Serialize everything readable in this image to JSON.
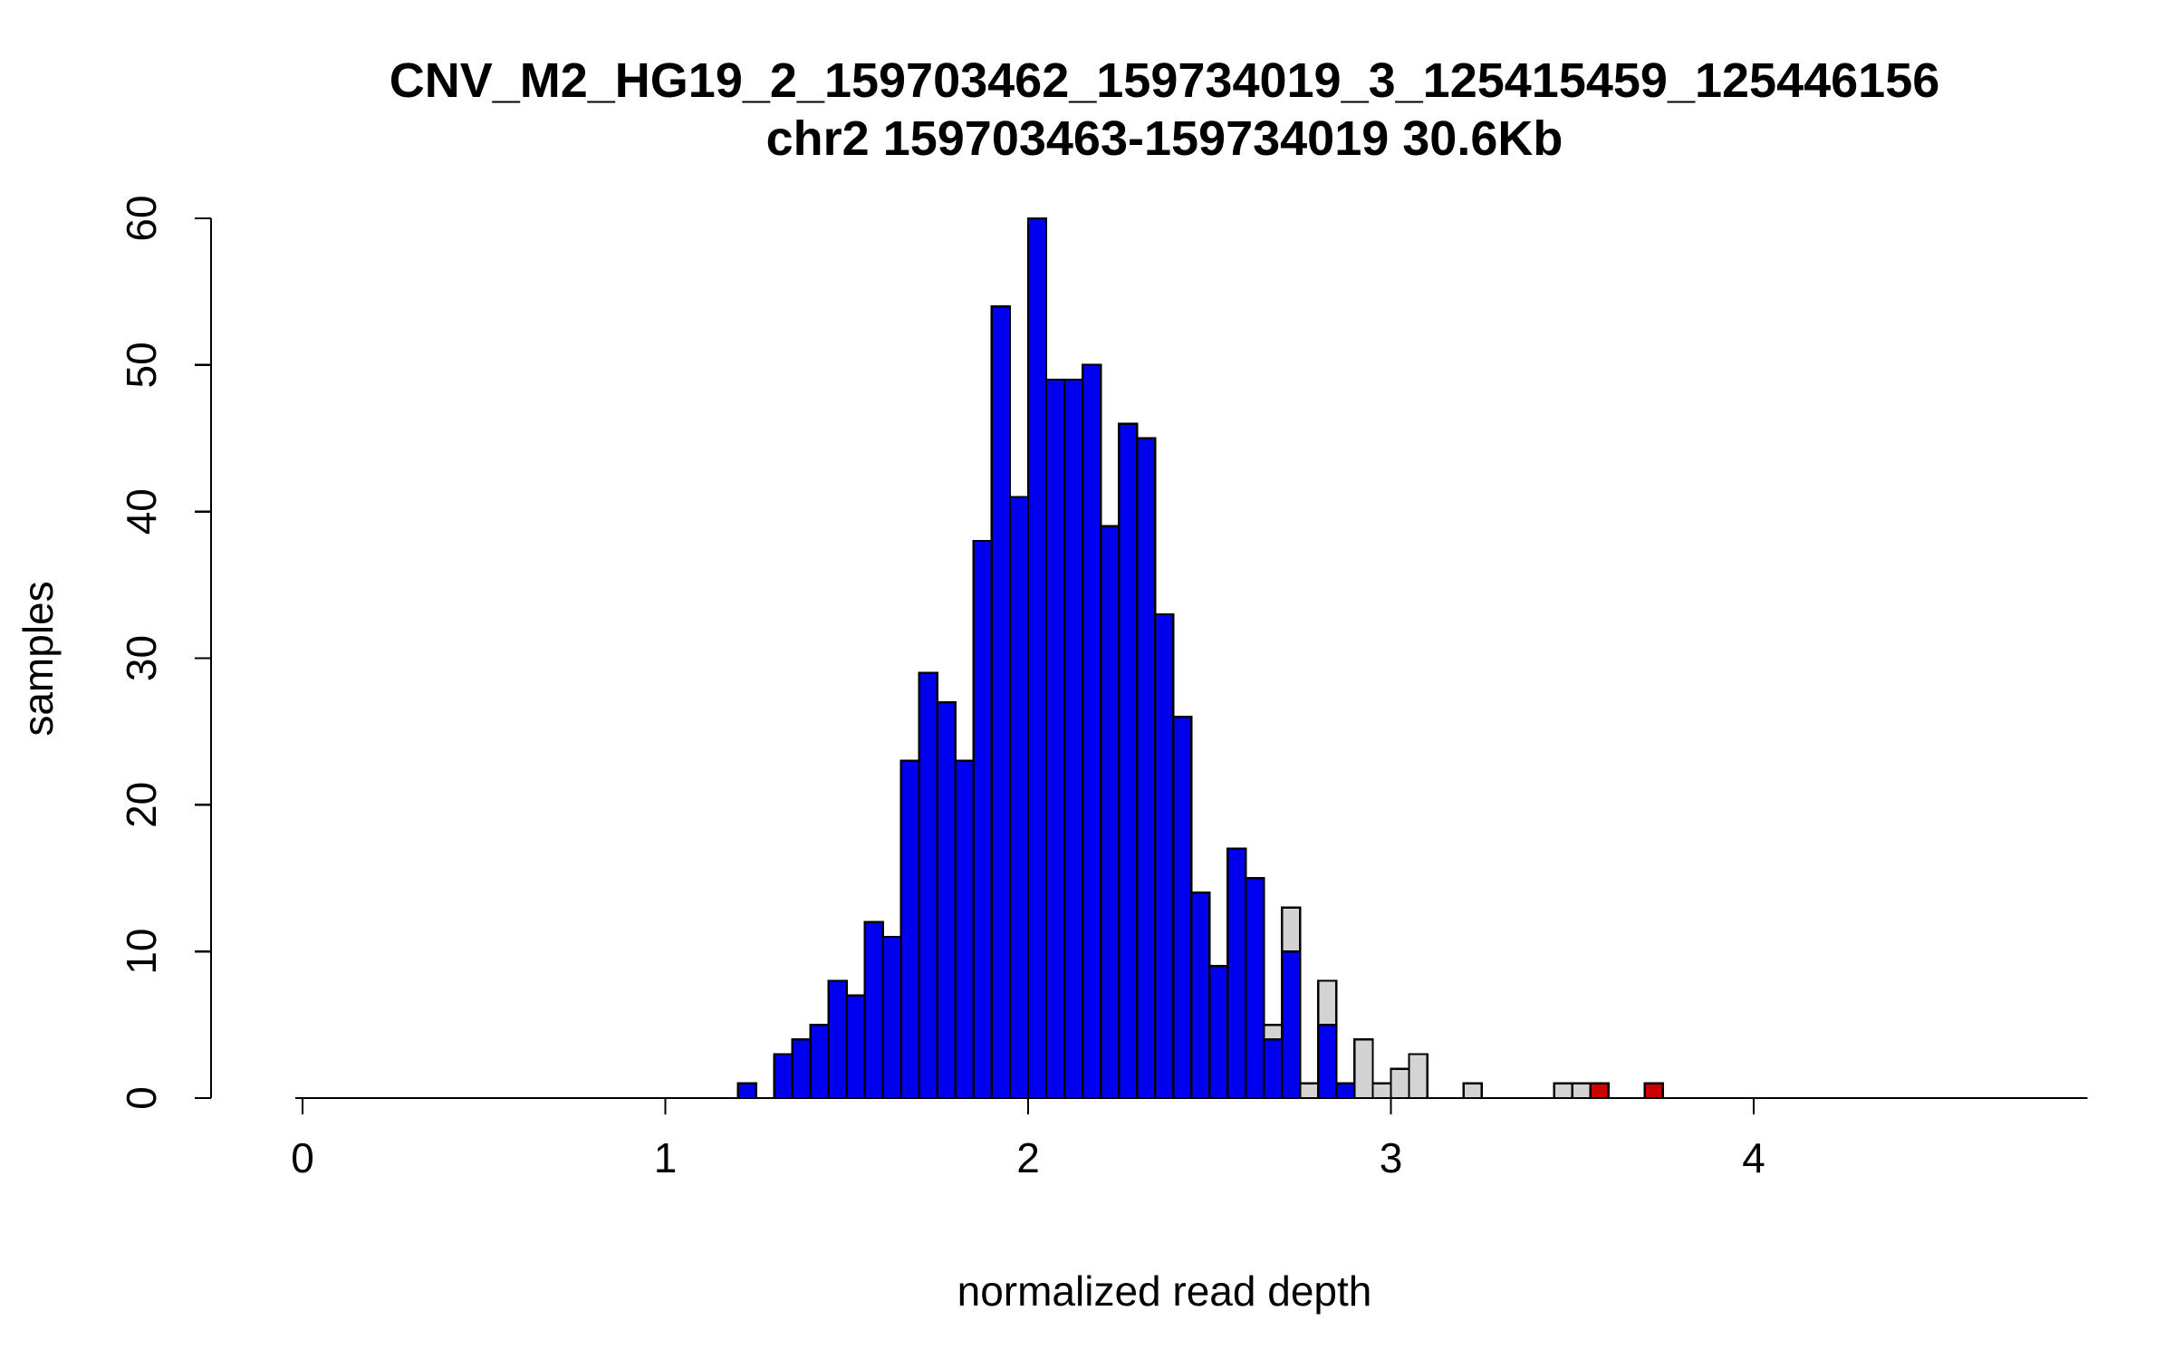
{
  "chart_data": {
    "type": "bar",
    "subtype": "histogram",
    "title": "CNV_M2_HG19_2_159703462_159734019_3_125415459_125446156",
    "subtitle": "chr2 159703463-159734019 30.6Kb",
    "xlabel": "normalized read depth",
    "ylabel": "samples",
    "x_ticks": [
      0,
      1,
      2,
      3,
      4
    ],
    "y_ticks": [
      0,
      10,
      20,
      30,
      40,
      50,
      60
    ],
    "xlim": [
      -0.02,
      4.92
    ],
    "ylim": [
      0,
      60
    ],
    "bin_width": 0.05,
    "grid": "off",
    "legend": "none",
    "colors": {
      "blue": "#0000EE",
      "gray": "#D3D3D3",
      "red": "#CD0000",
      "border": "#000000"
    },
    "bins": [
      {
        "x": 1.2,
        "total": 1,
        "blue": 1,
        "red": 0
      },
      {
        "x": 1.3,
        "total": 3,
        "blue": 3,
        "red": 0
      },
      {
        "x": 1.35,
        "total": 4,
        "blue": 4,
        "red": 0
      },
      {
        "x": 1.4,
        "total": 5,
        "blue": 5,
        "red": 0
      },
      {
        "x": 1.45,
        "total": 8,
        "blue": 8,
        "red": 0
      },
      {
        "x": 1.5,
        "total": 7,
        "blue": 7,
        "red": 0
      },
      {
        "x": 1.55,
        "total": 12,
        "blue": 12,
        "red": 0
      },
      {
        "x": 1.6,
        "total": 11,
        "blue": 11,
        "red": 0
      },
      {
        "x": 1.65,
        "total": 23,
        "blue": 23,
        "red": 0
      },
      {
        "x": 1.7,
        "total": 29,
        "blue": 29,
        "red": 0
      },
      {
        "x": 1.75,
        "total": 27,
        "blue": 27,
        "red": 0
      },
      {
        "x": 1.8,
        "total": 23,
        "blue": 23,
        "red": 0
      },
      {
        "x": 1.85,
        "total": 38,
        "blue": 38,
        "red": 0
      },
      {
        "x": 1.9,
        "total": 54,
        "blue": 54,
        "red": 0
      },
      {
        "x": 1.95,
        "total": 41,
        "blue": 41,
        "red": 0
      },
      {
        "x": 2.0,
        "total": 60,
        "blue": 60,
        "red": 0
      },
      {
        "x": 2.05,
        "total": 49,
        "blue": 49,
        "red": 0
      },
      {
        "x": 2.1,
        "total": 49,
        "blue": 49,
        "red": 0
      },
      {
        "x": 2.15,
        "total": 50,
        "blue": 50,
        "red": 0
      },
      {
        "x": 2.2,
        "total": 39,
        "blue": 39,
        "red": 0
      },
      {
        "x": 2.25,
        "total": 46,
        "blue": 46,
        "red": 0
      },
      {
        "x": 2.3,
        "total": 45,
        "blue": 45,
        "red": 0
      },
      {
        "x": 2.35,
        "total": 33,
        "blue": 33,
        "red": 0
      },
      {
        "x": 2.4,
        "total": 26,
        "blue": 26,
        "red": 0
      },
      {
        "x": 2.45,
        "total": 14,
        "blue": 14,
        "red": 0
      },
      {
        "x": 2.5,
        "total": 9,
        "blue": 9,
        "red": 0
      },
      {
        "x": 2.55,
        "total": 17,
        "blue": 17,
        "red": 0
      },
      {
        "x": 2.6,
        "total": 15,
        "blue": 15,
        "red": 0
      },
      {
        "x": 2.65,
        "total": 5,
        "blue": 4,
        "red": 0
      },
      {
        "x": 2.7,
        "total": 13,
        "blue": 10,
        "red": 0
      },
      {
        "x": 2.75,
        "total": 1,
        "blue": 0,
        "red": 0
      },
      {
        "x": 2.8,
        "total": 8,
        "blue": 5,
        "red": 0
      },
      {
        "x": 2.85,
        "total": 1,
        "blue": 1,
        "red": 0
      },
      {
        "x": 2.9,
        "total": 4,
        "blue": 0,
        "red": 0
      },
      {
        "x": 2.95,
        "total": 1,
        "blue": 0,
        "red": 0
      },
      {
        "x": 3.0,
        "total": 2,
        "blue": 0,
        "red": 0
      },
      {
        "x": 3.05,
        "total": 3,
        "blue": 0,
        "red": 0
      },
      {
        "x": 3.2,
        "total": 1,
        "blue": 0,
        "red": 0
      },
      {
        "x": 3.45,
        "total": 1,
        "blue": 0,
        "red": 0
      },
      {
        "x": 3.5,
        "total": 1,
        "blue": 0,
        "red": 0
      },
      {
        "x": 3.55,
        "total": 1,
        "blue": 0,
        "red": 1
      },
      {
        "x": 3.7,
        "total": 1,
        "blue": 0,
        "red": 1
      }
    ]
  }
}
